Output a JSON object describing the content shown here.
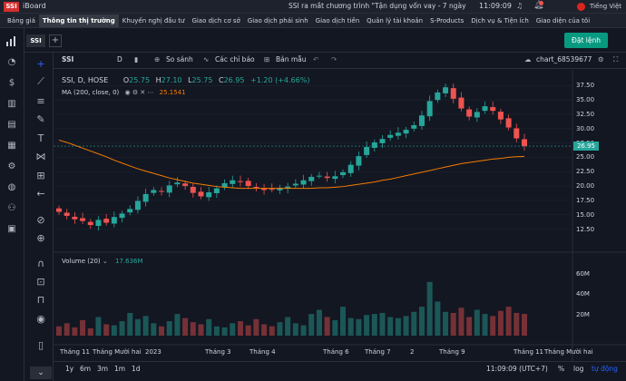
{
  "app": {
    "logo": "SSI",
    "name": "iBoard",
    "ticker": "SSI ra mắt chương trình \"Tận dụng vốn vay - 7 ngày miễn l",
    "clock": "11:09:09",
    "language": "Tiếng Việt"
  },
  "menu": [
    "Bảng giá",
    "Thông tin thị trường",
    "Khuyến nghị đầu tư",
    "Giao dịch cơ sở",
    "Giao dịch phái sinh",
    "Giao dịch tiền",
    "Quản lý tài khoản",
    "S-Products",
    "Dịch vụ & Tiện ích",
    "Giao diện của tôi"
  ],
  "active_menu": "Thông tin thị trường",
  "tabs": {
    "current": "SSI",
    "add": "+"
  },
  "order_button": "Đặt lệnh",
  "toolbar": {
    "symbol": "SSI",
    "interval": "D",
    "compare": "So sánh",
    "indicators": "Các chỉ báo",
    "template": "Bản mẫu",
    "chart_id": "chart_68539677"
  },
  "legend": {
    "symbol_line": "SSI, D, HOSE",
    "open_label": "O",
    "open": "25.75",
    "high_label": "H",
    "high": "27.10",
    "low_label": "L",
    "low": "25.75",
    "close_label": "C",
    "close": "26.95",
    "change": "+1.20 (+4.66%)",
    "ma_label": "MA (200, close, 0)",
    "ma_value": "25.1541",
    "volume_label": "Volume (20)",
    "volume_value": "17.636M"
  },
  "price_axis": [
    "37.50",
    "35.00",
    "32.50",
    "30.00",
    "27.50",
    "25.00",
    "22.50",
    "20.00",
    "17.50",
    "15.00",
    "12.50"
  ],
  "last_price_tag": "26.95",
  "volume_axis": [
    "60M",
    "40M",
    "20M"
  ],
  "time_axis": [
    "Tháng 11",
    "Tháng Mười hai",
    "2023",
    "Tháng 3",
    "Tháng 4",
    "Tháng 6",
    "Tháng 7",
    "2",
    "Tháng 9",
    "Tháng 11",
    "Tháng Mười hai"
  ],
  "bottom": {
    "ranges": [
      "1y",
      "6m",
      "3m",
      "1m",
      "1d"
    ],
    "time": "11:09:09 (UTC+7)",
    "percent": "%",
    "log": "log",
    "auto": "tự động"
  },
  "colors": {
    "up": "#26a69a",
    "down": "#ef5350",
    "ma": "#f57c00",
    "accent": "#089981",
    "brand": "#d32f2f"
  },
  "chart_data": {
    "type": "candlestick",
    "symbol": "SSI",
    "interval": "D",
    "ylim": [
      11,
      38.5
    ],
    "close_series": [
      15.5,
      14.8,
      14.2,
      13.9,
      13.2,
      14.1,
      13.6,
      14.6,
      15.2,
      16.0,
      17.4,
      18.6,
      19.3,
      19.0,
      20.1,
      20.6,
      20.0,
      18.8,
      18.2,
      18.9,
      19.6,
      20.5,
      21.0,
      20.7,
      20.0,
      19.7,
      19.3,
      19.4,
      19.7,
      19.9,
      20.4,
      21.0,
      21.6,
      21.8,
      21.4,
      21.7,
      22.4,
      23.7,
      25.2,
      26.8,
      27.6,
      28.2,
      28.9,
      29.3,
      29.8,
      30.6,
      32.3,
      34.8,
      36.3,
      37.2,
      35.2,
      33.5,
      32.1,
      32.9,
      33.9,
      33.1,
      31.6,
      30.2,
      28.3,
      26.95
    ],
    "ma200_series": [
      28.0,
      27.6,
      27.1,
      26.6,
      26.1,
      25.6,
      25.1,
      24.5,
      24.0,
      23.5,
      23.0,
      22.6,
      22.2,
      21.8,
      21.4,
      21.1,
      20.8,
      20.5,
      20.3,
      20.1,
      19.9,
      19.8,
      19.7,
      19.6,
      19.6,
      19.6,
      19.6,
      19.6,
      19.6,
      19.6,
      19.6,
      19.6,
      19.6,
      19.7,
      19.7,
      19.8,
      19.9,
      20.1,
      20.3,
      20.5,
      20.7,
      21.0,
      21.2,
      21.5,
      21.8,
      22.1,
      22.4,
      22.7,
      23.0,
      23.3,
      23.6,
      23.9,
      24.1,
      24.3,
      24.5,
      24.7,
      24.8,
      25.0,
      25.1,
      25.15
    ],
    "volume_series": [
      9,
      12,
      8,
      15,
      7,
      18,
      11,
      10,
      14,
      22,
      16,
      19,
      12,
      9,
      14,
      21,
      17,
      13,
      11,
      16,
      9,
      8,
      12,
      14,
      10,
      16,
      11,
      9,
      13,
      18,
      12,
      10,
      21,
      25,
      18,
      15,
      28,
      17,
      16,
      20,
      21,
      22,
      18,
      17,
      19,
      23,
      28,
      52,
      33,
      23,
      22,
      27,
      18,
      25,
      21,
      19,
      24,
      28,
      22,
      21
    ],
    "volume_unit": "M"
  }
}
